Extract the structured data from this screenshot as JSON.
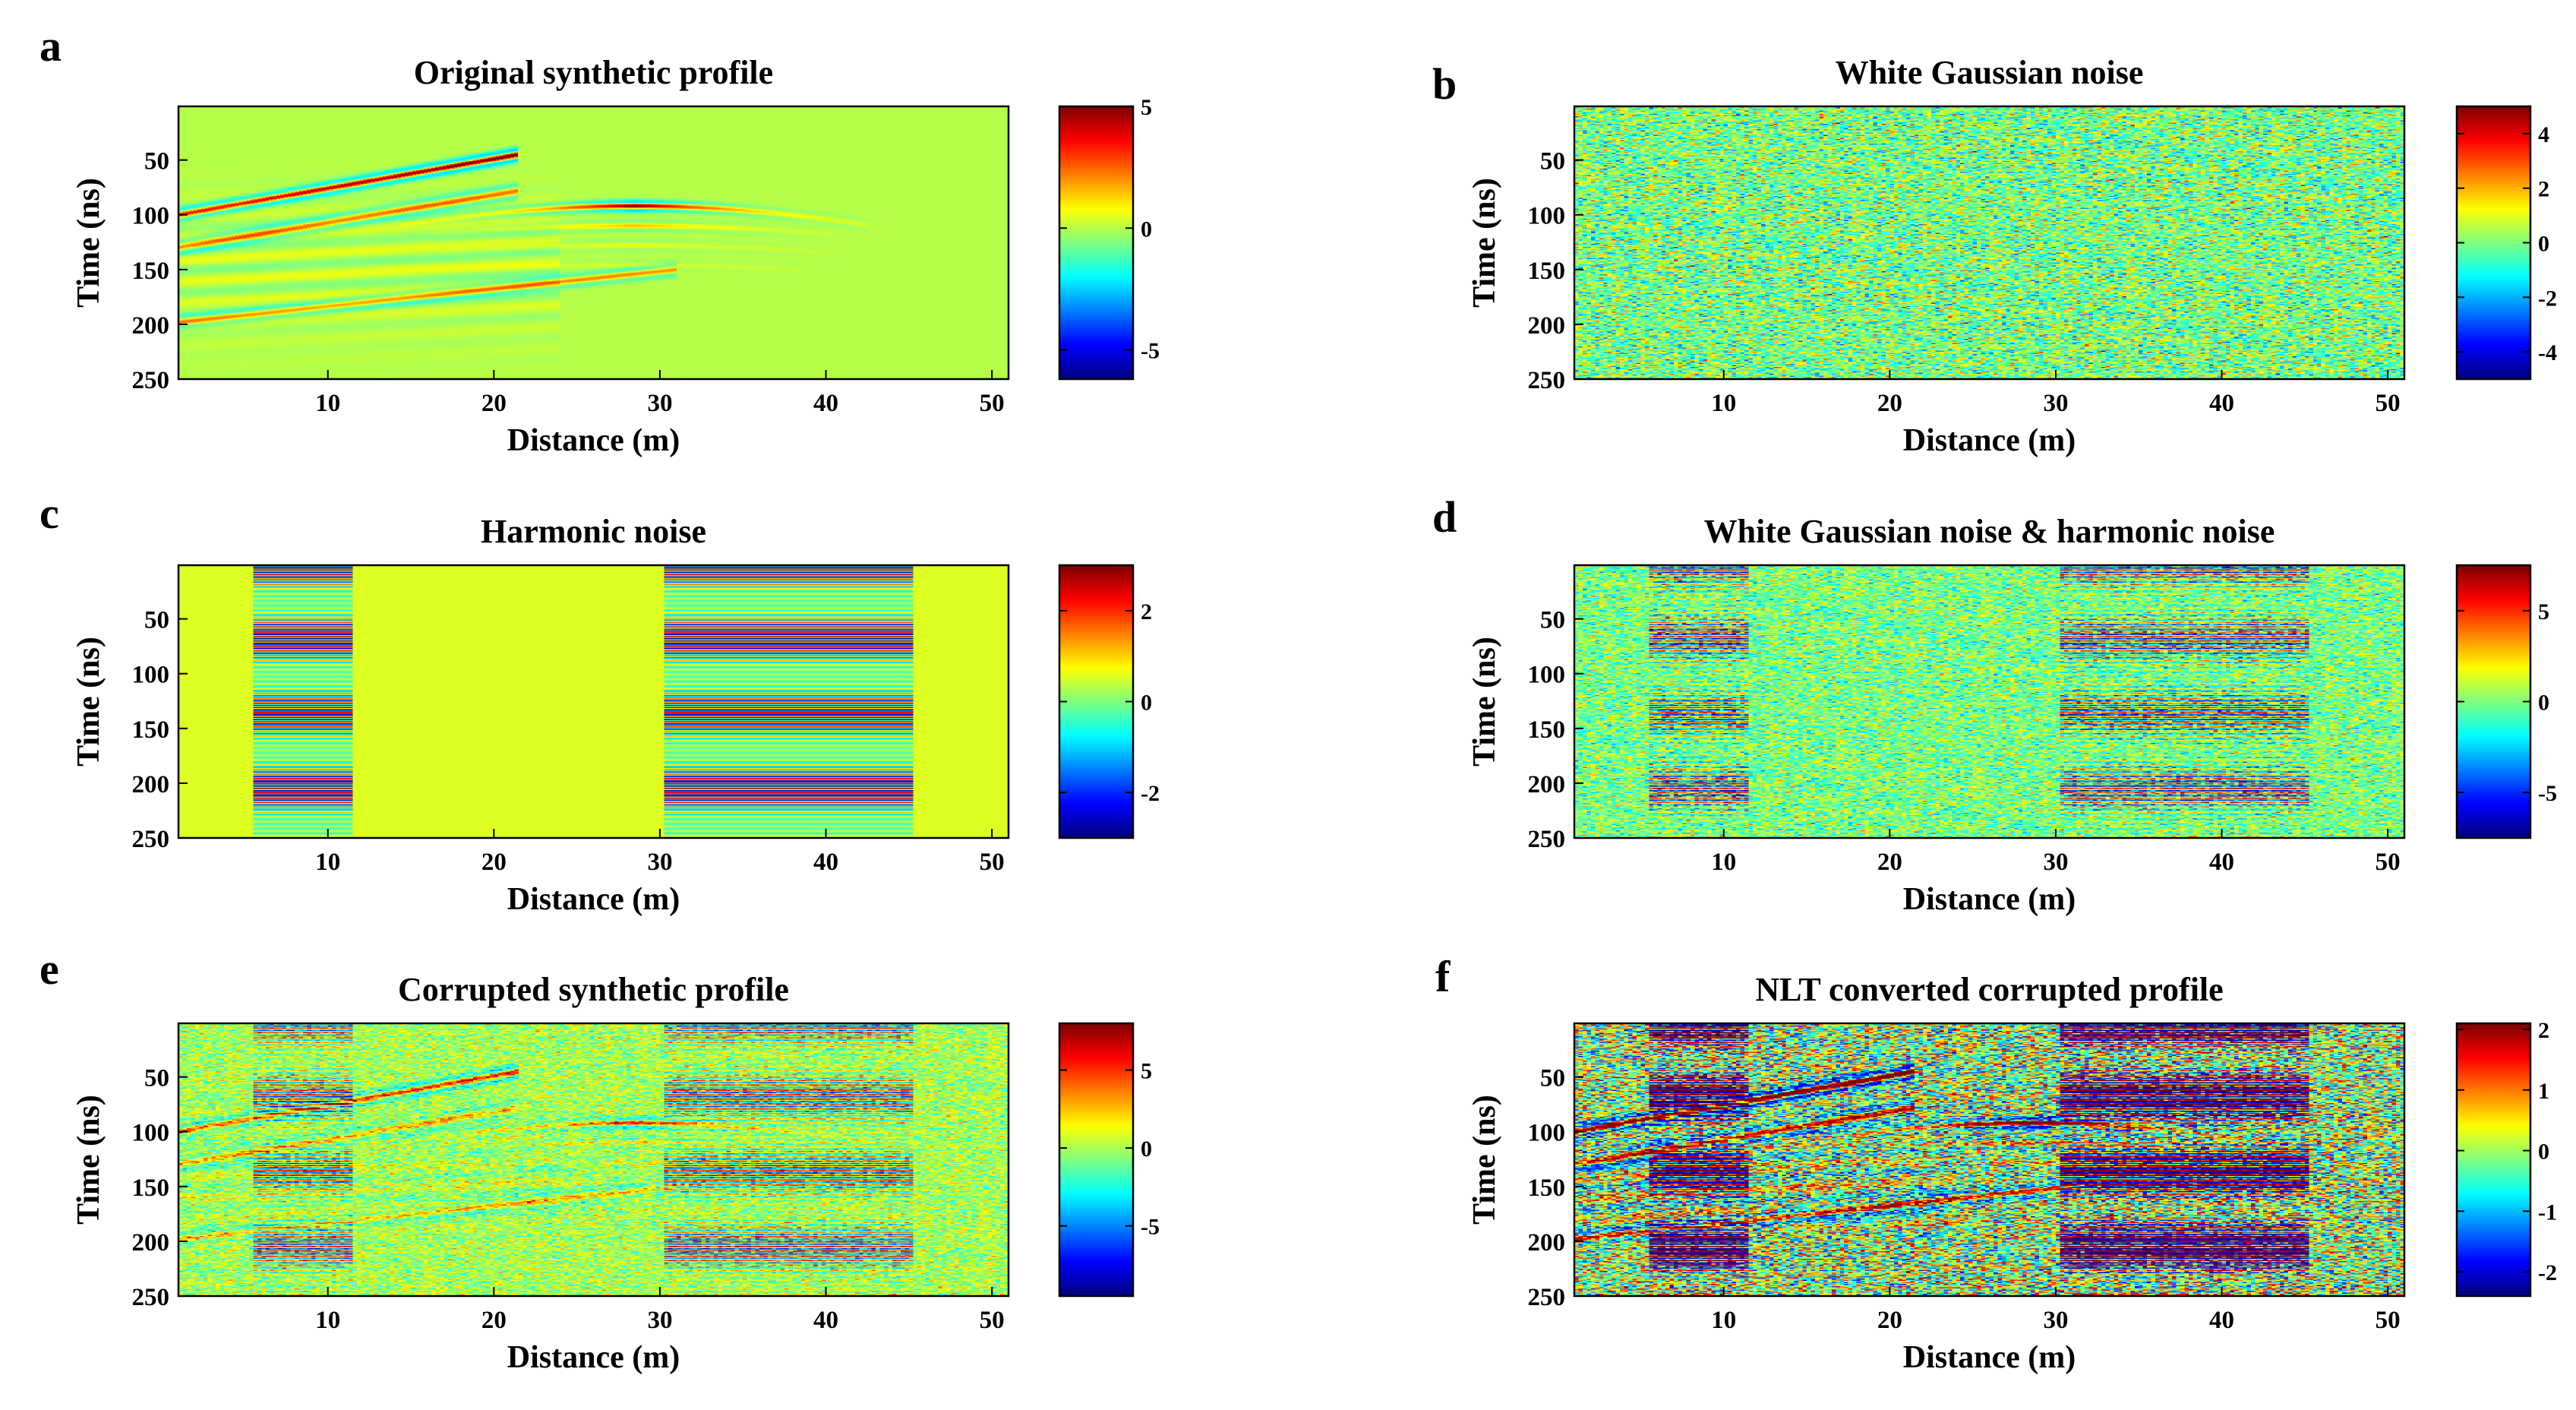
{
  "colors": {
    "jet": [
      "#00008f",
      "#0000ff",
      "#0080ff",
      "#00ffff",
      "#80ff80",
      "#ffff00",
      "#ff8000",
      "#ff0000",
      "#800000"
    ],
    "axis": "#000000"
  },
  "chart_data": [
    {
      "id": "a",
      "panel_label": "a",
      "type": "heatmap",
      "kind": "synthetic",
      "title": "Original synthetic profile",
      "xlabel": "Distance (m)",
      "ylabel": "Time (ns)",
      "xlim": [
        1,
        51
      ],
      "ylim": [
        1,
        250
      ],
      "xticks": [
        10,
        20,
        30,
        40,
        50
      ],
      "yticks": [
        50,
        100,
        150,
        200,
        250
      ],
      "colorbar": {
        "range": [
          -6.2,
          5
        ],
        "ticks": [
          5,
          0,
          -5
        ]
      },
      "events": [
        {
          "name": "left reflector",
          "points": [
            [
              1,
              100
            ],
            [
              21,
              45
            ]
          ]
        },
        {
          "name": "hyperbola apex",
          "x": 28.5,
          "t": 92
        },
        {
          "name": "deep reflector",
          "points": [
            [
              1,
              198
            ],
            [
              30,
              150
            ]
          ]
        }
      ]
    },
    {
      "id": "b",
      "panel_label": "b",
      "type": "heatmap",
      "kind": "noise",
      "title": "White Gaussian noise",
      "xlabel": "Distance (m)",
      "ylabel": "Time (ns)",
      "xlim": [
        1,
        51
      ],
      "ylim": [
        1,
        250
      ],
      "xticks": [
        10,
        20,
        30,
        40,
        50
      ],
      "yticks": [
        50,
        100,
        150,
        200,
        250
      ],
      "colorbar": {
        "range": [
          -5,
          5
        ],
        "ticks": [
          4,
          2,
          0,
          -2,
          -4
        ]
      }
    },
    {
      "id": "c",
      "panel_label": "c",
      "type": "heatmap",
      "kind": "harmonic",
      "title": "Harmonic noise",
      "xlabel": "Distance (m)",
      "ylabel": "Time (ns)",
      "xlim": [
        1,
        51
      ],
      "ylim": [
        1,
        250
      ],
      "xticks": [
        10,
        20,
        30,
        40,
        50
      ],
      "yticks": [
        50,
        100,
        150,
        200,
        250
      ],
      "colorbar": {
        "range": [
          -3,
          3
        ],
        "ticks": [
          2,
          0,
          -2
        ]
      },
      "harmonic_bands": [
        [
          5.5,
          11.5
        ],
        [
          30.2,
          45.3
        ]
      ]
    },
    {
      "id": "d",
      "panel_label": "d",
      "type": "heatmap",
      "kind": "noise+harmonic",
      "title": "White Gaussian noise & harmonic noise",
      "xlabel": "Distance (m)",
      "ylabel": "Time (ns)",
      "xlim": [
        1,
        51
      ],
      "ylim": [
        1,
        250
      ],
      "xticks": [
        10,
        20,
        30,
        40,
        50
      ],
      "yticks": [
        50,
        100,
        150,
        200,
        250
      ],
      "colorbar": {
        "range": [
          -7.5,
          7.5
        ],
        "ticks": [
          5,
          0,
          -5
        ]
      },
      "harmonic_bands": [
        [
          5.5,
          11.5
        ],
        [
          30.2,
          45.3
        ]
      ]
    },
    {
      "id": "e",
      "panel_label": "e",
      "type": "heatmap",
      "kind": "corrupted",
      "title": "Corrupted synthetic profile",
      "xlabel": "Distance (m)",
      "ylabel": "Time (ns)",
      "xlim": [
        1,
        51
      ],
      "ylim": [
        1,
        250
      ],
      "xticks": [
        10,
        20,
        30,
        40,
        50
      ],
      "yticks": [
        50,
        100,
        150,
        200,
        250
      ],
      "colorbar": {
        "range": [
          -9.5,
          8
        ],
        "ticks": [
          5,
          0,
          -5
        ]
      },
      "harmonic_bands": [
        [
          5.5,
          11.5
        ],
        [
          30.2,
          45.3
        ]
      ]
    },
    {
      "id": "f",
      "panel_label": "f",
      "type": "heatmap",
      "kind": "nlt",
      "title": "NLT converted corrupted profile",
      "xlabel": "Distance (m)",
      "ylabel": "Time (ns)",
      "xlim": [
        1,
        51
      ],
      "ylim": [
        1,
        250
      ],
      "xticks": [
        10,
        20,
        30,
        40,
        50
      ],
      "yticks": [
        50,
        100,
        150,
        200,
        250
      ],
      "colorbar": {
        "range": [
          -2.4,
          2.1
        ],
        "ticks": [
          2,
          1,
          0,
          -1,
          -2
        ]
      },
      "harmonic_bands": [
        [
          5.5,
          11.5
        ],
        [
          30.2,
          45.3
        ]
      ]
    }
  ]
}
